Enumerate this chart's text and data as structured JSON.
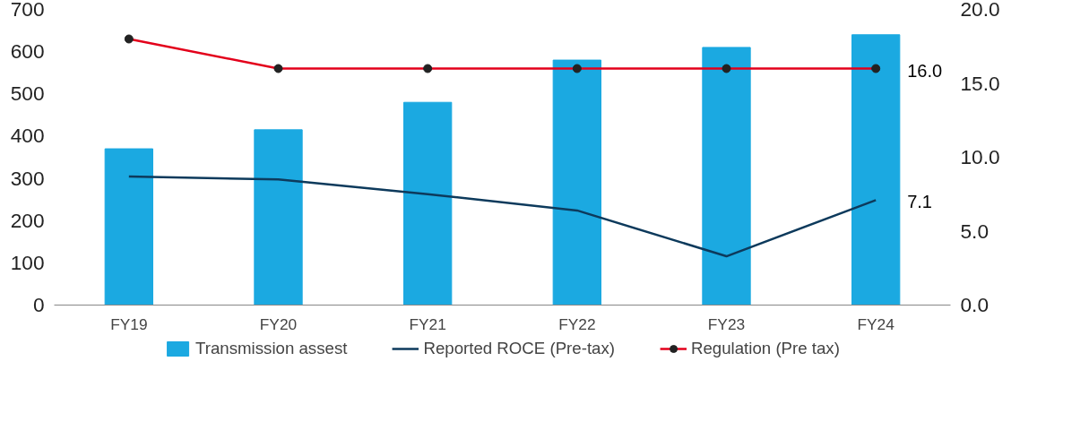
{
  "chart_data": {
    "type": "bar",
    "categories": [
      "FY19",
      "FY20",
      "FY21",
      "FY22",
      "FY23",
      "FY24"
    ],
    "series": [
      {
        "name": "Transmission assest",
        "color": "#1ba9e1",
        "values": [
          370,
          415,
          480,
          580,
          610,
          640
        ]
      },
      {
        "name": "Reported ROCE (Pre-tax)",
        "type": "line",
        "axis": "y2",
        "color": "#0d3a5c",
        "marker": "none",
        "values": [
          8.7,
          8.5,
          7.5,
          6.4,
          3.3,
          7.1
        ],
        "value_labels": [
          null,
          null,
          null,
          null,
          null,
          "7.1"
        ]
      },
      {
        "name": "Regulation (Pre tax)",
        "type": "line",
        "axis": "y2",
        "color": "#e3001b",
        "marker": "circle",
        "values": [
          18.0,
          16.0,
          16.0,
          16.0,
          16.0,
          16.0
        ],
        "value_labels": [
          null,
          null,
          null,
          null,
          null,
          "16.0"
        ]
      }
    ],
    "ylim": [
      0,
      700
    ],
    "yticks": [
      0,
      100,
      200,
      300,
      400,
      500,
      600,
      700
    ],
    "y2lim": [
      0,
      20
    ],
    "y2ticks": [
      {
        "value": 0,
        "label": "0.0"
      },
      {
        "value": 5,
        "label": "5.0"
      },
      {
        "value": 10,
        "label": "10.0"
      },
      {
        "value": 15,
        "label": "15.0"
      },
      {
        "value": 20,
        "label": "20.0"
      }
    ],
    "grid": false,
    "legend": "bottom"
  }
}
